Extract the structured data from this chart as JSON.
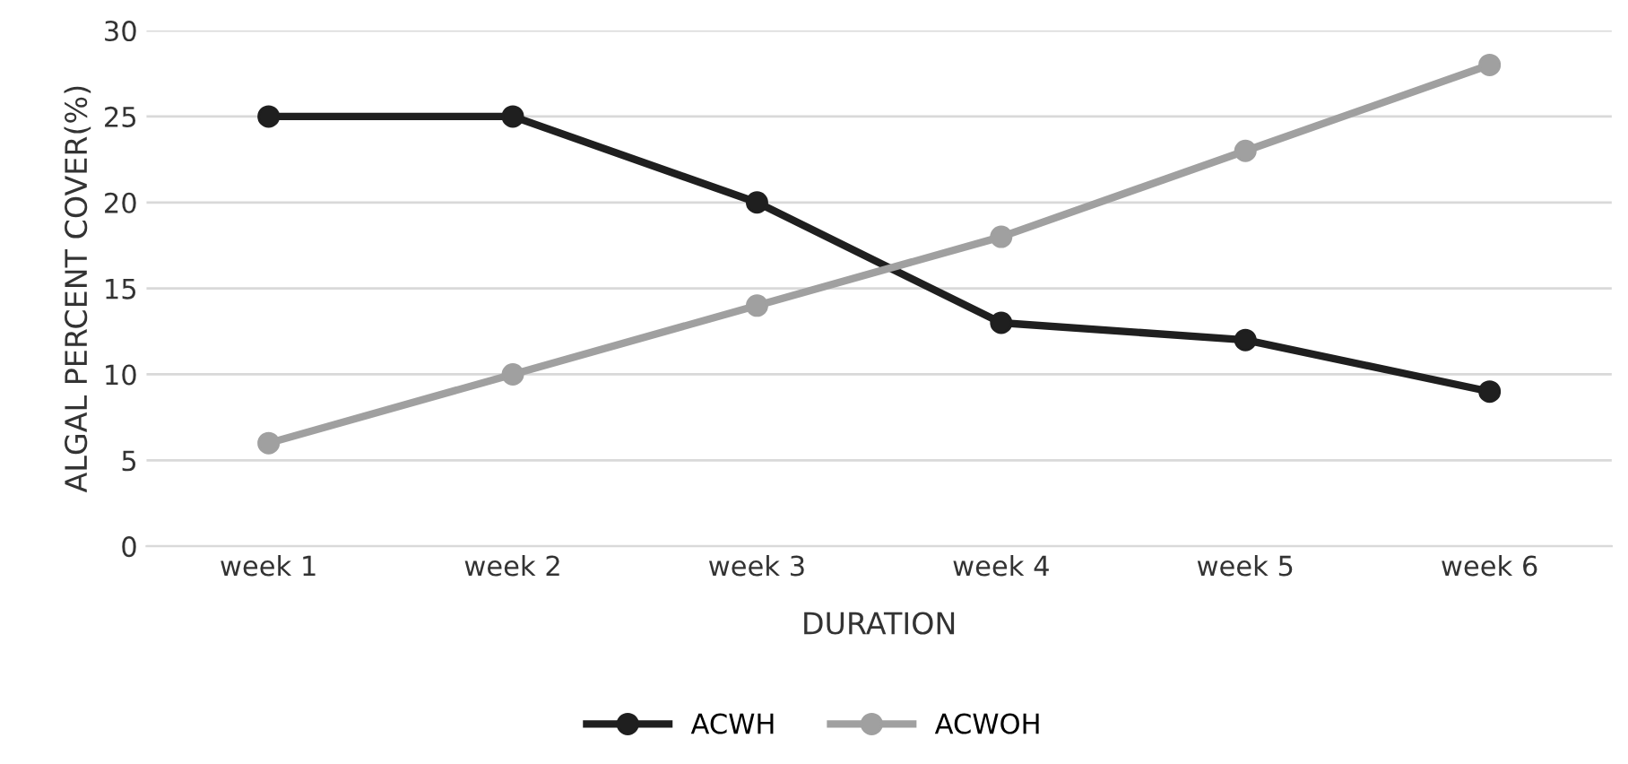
{
  "chart_data": {
    "type": "line",
    "xlabel": "DURATION",
    "ylabel": "ALGAL PERCENT COVER(%)",
    "categories": [
      "week 1",
      "week 2",
      "week 3",
      "week 4",
      "week 5",
      "week 6"
    ],
    "series": [
      {
        "name": "ACWH",
        "color": "#1f1f1f",
        "values": [
          25,
          25,
          20,
          13,
          12,
          9
        ]
      },
      {
        "name": "ACWOH",
        "color": "#a0a0a0",
        "values": [
          6,
          10,
          14,
          18,
          23,
          28
        ]
      }
    ],
    "ylim": [
      0,
      30
    ],
    "yticks": [
      0,
      5,
      10,
      15,
      20,
      25,
      30
    ],
    "grid": "y",
    "legend": "bottom",
    "marker": "circle",
    "line_style": "solid"
  }
}
